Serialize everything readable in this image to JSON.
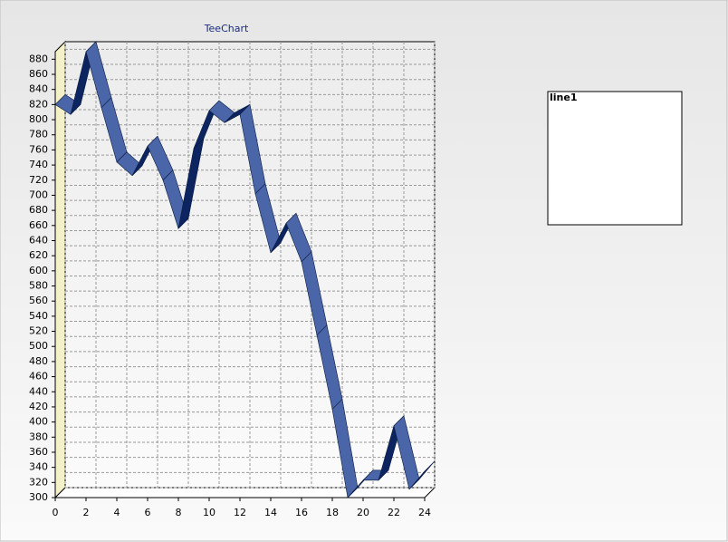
{
  "chart_data": {
    "type": "line",
    "title": "TeeChart",
    "x": [
      0,
      1,
      2,
      3,
      4,
      5,
      6,
      7,
      8,
      9,
      10,
      11,
      12,
      13,
      14,
      15,
      16,
      17,
      18,
      19,
      20,
      21,
      22,
      23,
      24
    ],
    "series": [
      {
        "name": "line1",
        "color": "#4a66a8",
        "values": [
          820,
          807,
          890,
          816,
          744,
          726,
          765,
          720,
          656,
          762,
          812,
          796,
          807,
          702,
          624,
          663,
          612,
          515,
          417,
          300,
          323,
          323,
          395,
          311,
          335
        ]
      }
    ],
    "xlim": [
      0,
      24
    ],
    "xticks": [
      0,
      2,
      4,
      6,
      8,
      10,
      12,
      14,
      16,
      18,
      20,
      22,
      24
    ],
    "ylim": [
      300,
      890
    ],
    "yticks": [
      300,
      320,
      340,
      360,
      380,
      400,
      420,
      440,
      460,
      480,
      500,
      520,
      540,
      560,
      580,
      600,
      620,
      640,
      660,
      680,
      700,
      720,
      740,
      760,
      780,
      800,
      820,
      840,
      860,
      880
    ],
    "grid": true,
    "legend": "right"
  }
}
